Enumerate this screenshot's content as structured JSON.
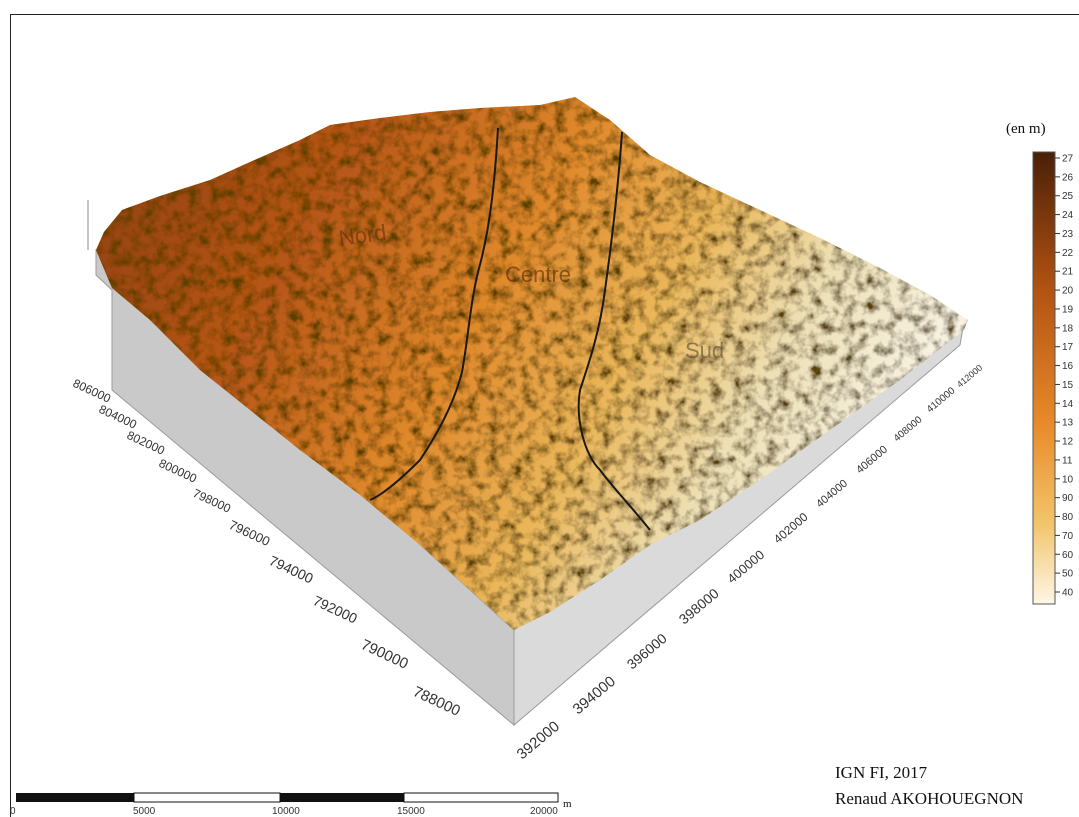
{
  "map": {
    "legend": {
      "title": "(en m)",
      "ticks": [
        "27",
        "26",
        "25",
        "24",
        "23",
        "22",
        "21",
        "20",
        "19",
        "18",
        "17",
        "16",
        "15",
        "14",
        "13",
        "12",
        "11",
        "10",
        "90",
        "80",
        "70",
        "60",
        "50",
        "40"
      ],
      "color_high": "#4a2008",
      "color_mid": "#e88a2a",
      "color_low": "#fdf7e6"
    },
    "zones": [
      "Nord",
      "Centre",
      "Sud"
    ],
    "y_axis_labels": [
      "806000",
      "804000",
      "802000",
      "800000",
      "798000",
      "796000",
      "794000",
      "792000",
      "790000",
      "788000"
    ],
    "x_axis_labels": [
      "392000",
      "394000",
      "396000",
      "398000",
      "400000",
      "402000",
      "404000",
      "406000",
      "408000",
      "410000",
      "412000"
    ],
    "scale_bar": {
      "labels": [
        "0",
        "5000",
        "10000",
        "15000",
        "20000"
      ],
      "unit": "m"
    },
    "credits": {
      "source": "IGN FI, 2017",
      "author": "Renaud AKOHOUEGNON"
    }
  }
}
